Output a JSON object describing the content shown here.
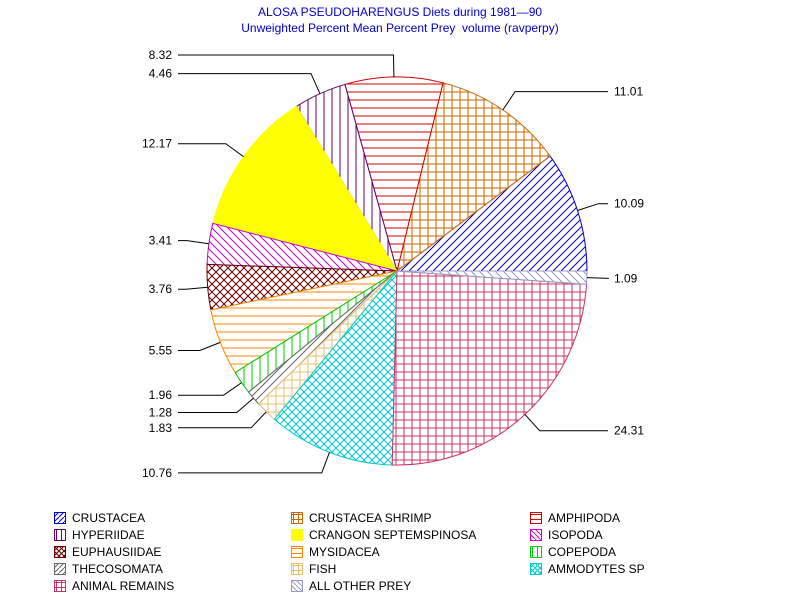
{
  "chart_data": {
    "type": "pie",
    "title": "ALOSA PSEUDOHARENGUS Diets during 1981—90",
    "subtitle": "Unweighted Percent Mean Percent Prey  volume (ravperpy)",
    "legend_position": "bottom",
    "slices": [
      {
        "name": "CRUSTACEA",
        "value": 10.09,
        "label": "10.09",
        "color": "#0000cc",
        "pattern": "diag-up"
      },
      {
        "name": "CRUSTACEA SHRIMP",
        "value": 11.01,
        "label": "11.01",
        "color": "#cc6600",
        "pattern": "crosshatch"
      },
      {
        "name": "AMPHIPODA",
        "value": 8.32,
        "label": "8.32",
        "color": "#cc0000",
        "pattern": "horizontal"
      },
      {
        "name": "HYPERIIDAE",
        "value": 4.46,
        "label": "4.46",
        "color": "#660066",
        "pattern": "vertical"
      },
      {
        "name": "CRANGON SEPTEMSPINOSA",
        "value": 12.17,
        "label": "12.17",
        "color": "#ffff00",
        "pattern": "solid"
      },
      {
        "name": "ISOPODA",
        "value": 3.41,
        "label": "3.41",
        "color": "#cc00cc",
        "pattern": "diag-down"
      },
      {
        "name": "EUPHAUSIIDAE",
        "value": 3.76,
        "label": "3.76",
        "color": "#660000",
        "pattern": "diag-crosshatch"
      },
      {
        "name": "MYSIDACEA",
        "value": 5.55,
        "label": "5.55",
        "color": "#ff8800",
        "pattern": "horizontal"
      },
      {
        "name": "COPEPODA",
        "value": 1.96,
        "label": "1.96",
        "color": "#00cc00",
        "pattern": "vertical"
      },
      {
        "name": "THECOSOMATA",
        "value": 1.28,
        "label": "1.28",
        "color": "#666666",
        "pattern": "diag-up"
      },
      {
        "name": "FISH",
        "value": 1.83,
        "label": "1.83",
        "color": "#e8c070",
        "pattern": "crosshatch"
      },
      {
        "name": "AMMODYTES SP",
        "value": 10.76,
        "label": "10.76",
        "color": "#00cccc",
        "pattern": "diag-crosshatch"
      },
      {
        "name": "ANIMAL REMAINS",
        "value": 24.31,
        "label": "24.31",
        "color": "#cc3366",
        "pattern": "crosshatch"
      },
      {
        "name": "ALL OTHER PREY",
        "value": 1.09,
        "label": "1.09",
        "color": "#9999cc",
        "pattern": "diag-down"
      }
    ]
  }
}
